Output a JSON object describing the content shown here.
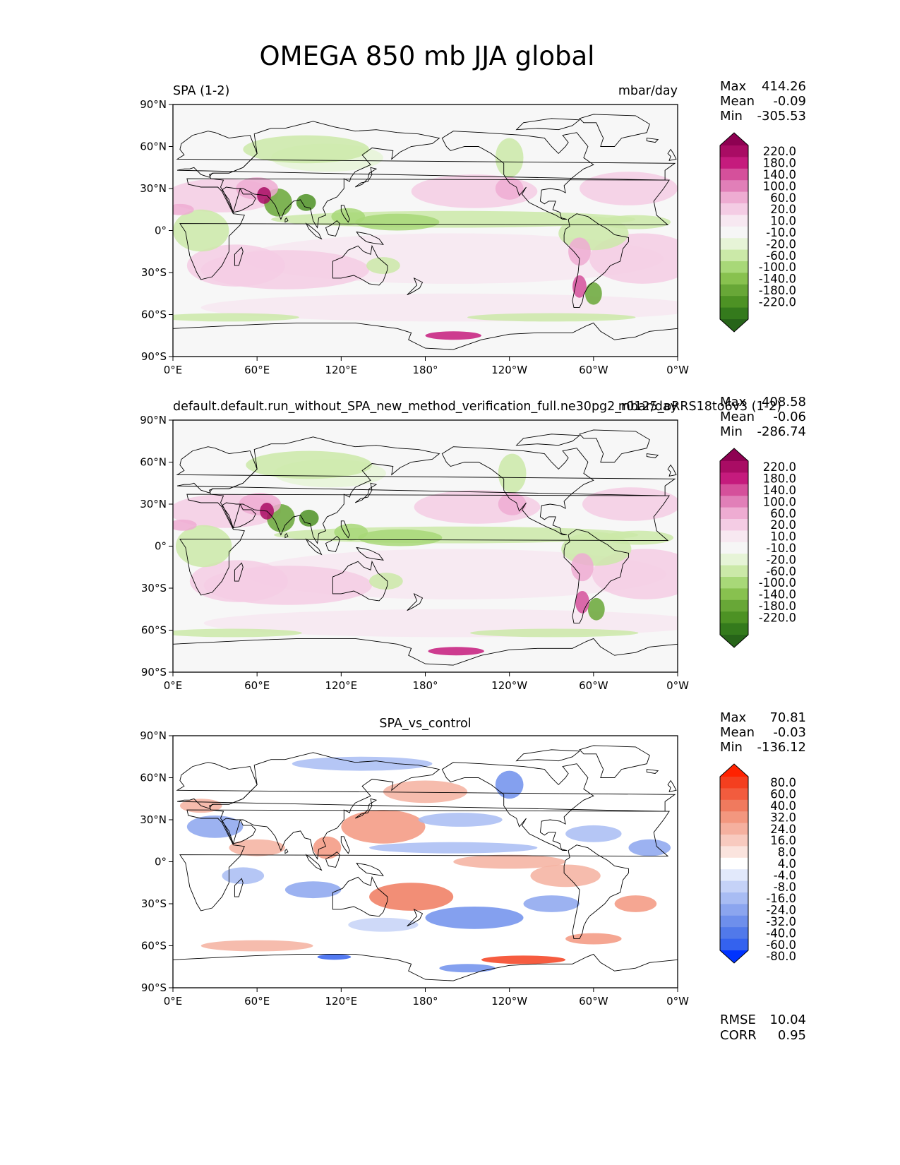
{
  "title": "OMEGA 850 mb JJA global",
  "chart_data": [
    {
      "type": "heatmap",
      "left_title": "SPA (1-2)",
      "right_title": "mbar/day",
      "center_title": "",
      "xticks": [
        "0°E",
        "60°E",
        "120°E",
        "180°",
        "120°W",
        "60°W",
        "0°W"
      ],
      "yticks": [
        "90°N",
        "60°N",
        "30°N",
        "0°",
        "30°S",
        "60°S",
        "90°S"
      ],
      "stats": [
        [
          "Max",
          "414.26"
        ],
        [
          "Mean",
          "-0.09"
        ],
        [
          "Min",
          "-305.53"
        ]
      ],
      "levels": [
        "220.0",
        "180.0",
        "140.0",
        "100.0",
        "60.0",
        "20.0",
        "10.0",
        "-10.0",
        "-20.0",
        "-60.0",
        "-100.0",
        "-140.0",
        "-180.0",
        "-220.0"
      ],
      "colors": [
        "#8e0152",
        "#a90c64",
        "#c51b7d",
        "#d5509b",
        "#e17fb8",
        "#eeacd2",
        "#f4cce4",
        "#f7e8f1",
        "#f6f6f6",
        "#e6f4d7",
        "#cbe9a8",
        "#a8d878",
        "#88c14f",
        "#68a737",
        "#4d9224",
        "#347a1c",
        "#276419"
      ],
      "background": "#f7f7f7",
      "footer": []
    },
    {
      "type": "heatmap",
      "left_title": "default.default.run_without_SPA_new_method_verification_full.ne30pg2_r0125_oRRS18to6v3 (1-2)",
      "right_title": "mbar/day",
      "center_title": "",
      "xticks": [
        "0°E",
        "60°E",
        "120°E",
        "180°",
        "120°W",
        "60°W",
        "0°W"
      ],
      "yticks": [
        "90°N",
        "60°N",
        "30°N",
        "0°",
        "30°S",
        "60°S",
        "90°S"
      ],
      "stats": [
        [
          "Max",
          "408.58"
        ],
        [
          "Mean",
          "-0.06"
        ],
        [
          "Min",
          "-286.74"
        ]
      ],
      "levels": [
        "220.0",
        "180.0",
        "140.0",
        "100.0",
        "60.0",
        "20.0",
        "10.0",
        "-10.0",
        "-20.0",
        "-60.0",
        "-100.0",
        "-140.0",
        "-180.0",
        "-220.0"
      ],
      "colors": [
        "#8e0152",
        "#a90c64",
        "#c51b7d",
        "#d5509b",
        "#e17fb8",
        "#eeacd2",
        "#f4cce4",
        "#f7e8f1",
        "#f6f6f6",
        "#e6f4d7",
        "#cbe9a8",
        "#a8d878",
        "#88c14f",
        "#68a737",
        "#4d9224",
        "#347a1c",
        "#276419"
      ],
      "background": "#f7f7f7",
      "footer": []
    },
    {
      "type": "heatmap",
      "left_title": "",
      "right_title": "",
      "center_title": "SPA_vs_control",
      "xticks": [
        "0°E",
        "60°E",
        "120°E",
        "180°",
        "120°W",
        "60°W",
        "0°W"
      ],
      "yticks": [
        "90°N",
        "60°N",
        "30°N",
        "0°",
        "30°S",
        "60°S",
        "90°S"
      ],
      "stats": [
        [
          "Max",
          "70.81"
        ],
        [
          "Mean",
          "-0.03"
        ],
        [
          "Min",
          "-136.12"
        ]
      ],
      "levels": [
        "80.0",
        "60.0",
        "40.0",
        "32.0",
        "24.0",
        "16.0",
        "8.0",
        "4.0",
        "-4.0",
        "-8.0",
        "-16.0",
        "-24.0",
        "-32.0",
        "-40.0",
        "-60.0",
        "-80.0"
      ],
      "colors": [
        "#ff2200",
        "#f43f1f",
        "#f25c3e",
        "#f07a5e",
        "#f3977f",
        "#f5b09f",
        "#f8cabf",
        "#fbe4de",
        "#ffffff",
        "#e2e9fb",
        "#c5d2f7",
        "#a8bcf3",
        "#8ba5ef",
        "#6e8fec",
        "#5179ea",
        "#3462ee",
        "#0033ff"
      ],
      "background": "#ffffff",
      "footer": [
        [
          "RMSE",
          "10.04"
        ],
        [
          "CORR",
          "0.95"
        ]
      ]
    }
  ]
}
